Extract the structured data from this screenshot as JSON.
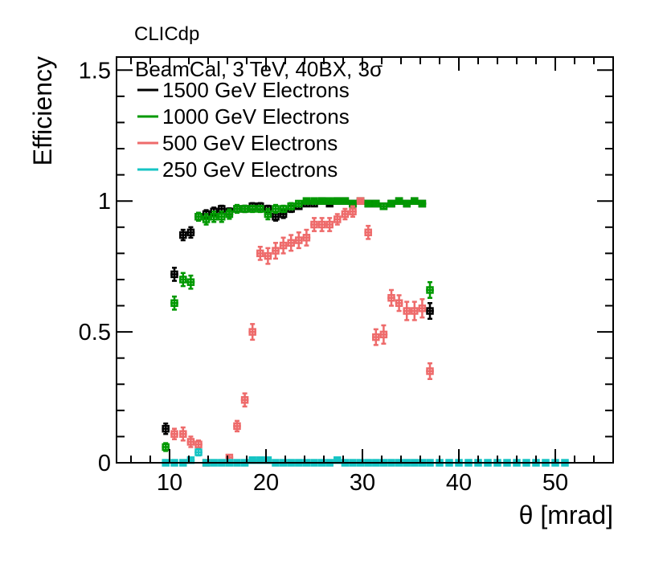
{
  "chart_data": {
    "type": "scatter",
    "experiment_label": "CLICdp",
    "legend_header": "BeamCal, 3 TeV, 40BX, 3σ",
    "xlabel": "θ [mrad]",
    "ylabel": "Efficiency",
    "xlim": [
      4.5,
      56
    ],
    "ylim": [
      0,
      1.55
    ],
    "x_ticks": [
      10,
      20,
      30,
      40,
      50
    ],
    "x_tick_labels": [
      "10",
      "20",
      "30",
      "40",
      "50"
    ],
    "y_ticks": [
      0,
      0.5,
      1,
      1.5
    ],
    "y_tick_labels": [
      "0",
      "0.5",
      "1",
      "1.5"
    ],
    "legend_position": "top-left",
    "series": [
      {
        "name": "1500 GeV Electrons",
        "color": "#000000",
        "x_halfwidth": 0.4,
        "points": [
          [
            9.6,
            0.13,
            0.02
          ],
          [
            10.5,
            0.72,
            0.025
          ],
          [
            11.4,
            0.87,
            0.02
          ],
          [
            12.2,
            0.88,
            0.02
          ],
          [
            13.0,
            0.94,
            0.015
          ],
          [
            13.8,
            0.95,
            0.015
          ],
          [
            14.6,
            0.96,
            0.015
          ],
          [
            15.4,
            0.97,
            0.012
          ],
          [
            16.2,
            0.96,
            0.012
          ],
          [
            17.0,
            0.97,
            0.012
          ],
          [
            17.8,
            0.97,
            0.012
          ],
          [
            18.6,
            0.98,
            0.012
          ],
          [
            19.4,
            0.98,
            0.012
          ],
          [
            20.2,
            0.97,
            0.012
          ],
          [
            21.0,
            0.94,
            0.015
          ],
          [
            21.8,
            0.95,
            0.015
          ],
          [
            22.6,
            0.97,
            0.012
          ],
          [
            23.4,
            0.98,
            0.01
          ],
          [
            24.2,
            0.99,
            0.01
          ],
          [
            25.0,
            0.99,
            0.01
          ],
          [
            25.8,
            1.0,
            0.008
          ],
          [
            26.6,
            0.99,
            0.008
          ],
          [
            27.4,
            1.0,
            0.008
          ],
          [
            28.2,
            1.0,
            0.008
          ],
          [
            29.0,
            0.99,
            0.008
          ],
          [
            29.8,
            1.0,
            0.008
          ],
          [
            30.6,
            0.99,
            0.008
          ],
          [
            31.4,
            0.99,
            0.008
          ],
          [
            32.2,
            0.98,
            0.01
          ],
          [
            33.0,
            0.99,
            0.008
          ],
          [
            33.8,
            1.0,
            0.008
          ],
          [
            34.6,
            0.99,
            0.008
          ],
          [
            35.4,
            1.0,
            0.008
          ],
          [
            36.2,
            0.99,
            0.008
          ],
          [
            37.0,
            0.58,
            0.03
          ]
        ]
      },
      {
        "name": "1000 GeV Electrons",
        "color": "#009900",
        "x_halfwidth": 0.4,
        "points": [
          [
            9.6,
            0.06,
            0.015
          ],
          [
            10.5,
            0.61,
            0.025
          ],
          [
            11.4,
            0.7,
            0.025
          ],
          [
            12.2,
            0.69,
            0.025
          ],
          [
            13.0,
            0.94,
            0.015
          ],
          [
            13.8,
            0.93,
            0.02
          ],
          [
            14.6,
            0.94,
            0.02
          ],
          [
            15.4,
            0.94,
            0.02
          ],
          [
            16.2,
            0.95,
            0.018
          ],
          [
            17.0,
            0.97,
            0.015
          ],
          [
            17.8,
            0.97,
            0.012
          ],
          [
            18.6,
            0.97,
            0.012
          ],
          [
            19.4,
            0.97,
            0.012
          ],
          [
            20.2,
            0.95,
            0.02
          ],
          [
            21.0,
            0.97,
            0.015
          ],
          [
            21.8,
            0.97,
            0.012
          ],
          [
            22.6,
            0.98,
            0.012
          ],
          [
            23.4,
            0.99,
            0.01
          ],
          [
            24.2,
            1.0,
            0.008
          ],
          [
            25.0,
            1.0,
            0.008
          ],
          [
            25.8,
            1.0,
            0.008
          ],
          [
            26.6,
            1.0,
            0.008
          ],
          [
            27.4,
            1.0,
            0.008
          ],
          [
            28.2,
            1.0,
            0.008
          ],
          [
            29.0,
            0.99,
            0.008
          ],
          [
            29.8,
            1.0,
            0.008
          ],
          [
            30.6,
            0.99,
            0.008
          ],
          [
            31.4,
            0.99,
            0.008
          ],
          [
            32.2,
            0.98,
            0.01
          ],
          [
            33.0,
            0.99,
            0.008
          ],
          [
            33.8,
            1.0,
            0.008
          ],
          [
            34.6,
            0.99,
            0.008
          ],
          [
            35.4,
            1.0,
            0.008
          ],
          [
            36.2,
            0.99,
            0.008
          ],
          [
            37.0,
            0.66,
            0.03
          ]
        ]
      },
      {
        "name": "500 GeV Electrons",
        "color": "#ee6b6b",
        "x_halfwidth": 0.4,
        "points": [
          [
            10.5,
            0.11,
            0.02
          ],
          [
            11.4,
            0.11,
            0.025
          ],
          [
            12.2,
            0.08,
            0.02
          ],
          [
            13.0,
            0.07,
            0.015
          ],
          [
            13.8,
            0.0,
            0.005
          ],
          [
            16.2,
            0.02,
            0.01
          ],
          [
            17.0,
            0.14,
            0.02
          ],
          [
            17.8,
            0.24,
            0.025
          ],
          [
            18.6,
            0.5,
            0.03
          ],
          [
            19.4,
            0.8,
            0.025
          ],
          [
            20.2,
            0.79,
            0.03
          ],
          [
            21.0,
            0.81,
            0.03
          ],
          [
            21.8,
            0.83,
            0.03
          ],
          [
            22.6,
            0.84,
            0.03
          ],
          [
            23.4,
            0.85,
            0.03
          ],
          [
            24.2,
            0.86,
            0.03
          ],
          [
            25.0,
            0.91,
            0.025
          ],
          [
            25.8,
            0.91,
            0.025
          ],
          [
            26.6,
            0.91,
            0.025
          ],
          [
            27.4,
            0.93,
            0.02
          ],
          [
            28.2,
            0.95,
            0.02
          ],
          [
            29.0,
            0.96,
            0.02
          ],
          [
            29.8,
            1.0,
            0.008
          ],
          [
            30.6,
            0.88,
            0.025
          ],
          [
            31.4,
            0.48,
            0.03
          ],
          [
            32.2,
            0.49,
            0.035
          ],
          [
            33.0,
            0.63,
            0.03
          ],
          [
            33.8,
            0.61,
            0.03
          ],
          [
            34.6,
            0.58,
            0.035
          ],
          [
            35.4,
            0.58,
            0.035
          ],
          [
            36.2,
            0.59,
            0.035
          ],
          [
            37.0,
            0.35,
            0.03
          ]
        ]
      },
      {
        "name": "250 GeV Electrons",
        "color": "#17c4c4",
        "x_halfwidth": 0.4,
        "points": [
          [
            9.6,
            0.0,
            0.004
          ],
          [
            10.5,
            0.0,
            0.004
          ],
          [
            11.4,
            0.0,
            0.004
          ],
          [
            12.2,
            0.01,
            0.008
          ],
          [
            13.0,
            0.04,
            0.012
          ],
          [
            13.8,
            0.0,
            0.004
          ],
          [
            14.6,
            0.0,
            0.004
          ],
          [
            15.4,
            0.0,
            0.004
          ],
          [
            16.2,
            0.0,
            0.004
          ],
          [
            17.0,
            0.0,
            0.004
          ],
          [
            17.8,
            0.0,
            0.004
          ],
          [
            18.6,
            0.01,
            0.006
          ],
          [
            19.4,
            0.01,
            0.006
          ],
          [
            20.2,
            0.01,
            0.006
          ],
          [
            21.0,
            0.0,
            0.004
          ],
          [
            21.8,
            0.0,
            0.004
          ],
          [
            22.6,
            0.0,
            0.004
          ],
          [
            23.4,
            0.0,
            0.004
          ],
          [
            24.2,
            0.0,
            0.004
          ],
          [
            25.0,
            0.0,
            0.004
          ],
          [
            25.8,
            0.0,
            0.004
          ],
          [
            26.6,
            0.0,
            0.004
          ],
          [
            27.4,
            0.01,
            0.006
          ],
          [
            28.2,
            0.0,
            0.004
          ],
          [
            29.0,
            0.0,
            0.004
          ],
          [
            29.8,
            0.0,
            0.004
          ],
          [
            30.6,
            0.0,
            0.004
          ],
          [
            31.4,
            0.0,
            0.004
          ],
          [
            32.2,
            0.0,
            0.004
          ],
          [
            33.0,
            0.0,
            0.004
          ],
          [
            33.8,
            0.0,
            0.004
          ],
          [
            34.6,
            0.0,
            0.004
          ],
          [
            35.4,
            0.0,
            0.004
          ],
          [
            36.2,
            0.0,
            0.004
          ],
          [
            37.0,
            0.0,
            0.004
          ],
          [
            38.0,
            0.0,
            0.004
          ],
          [
            39.0,
            0.0,
            0.004
          ],
          [
            40.0,
            0.0,
            0.004
          ],
          [
            41.0,
            0.0,
            0.004
          ],
          [
            42.0,
            0.0,
            0.004
          ],
          [
            43.0,
            0.0,
            0.004
          ],
          [
            44.0,
            0.0,
            0.004
          ],
          [
            45.0,
            0.0,
            0.004
          ],
          [
            46.0,
            0.0,
            0.004
          ],
          [
            47.0,
            0.0,
            0.004
          ],
          [
            48.0,
            0.0,
            0.004
          ],
          [
            49.0,
            0.0,
            0.004
          ],
          [
            50.0,
            0.0,
            0.004
          ],
          [
            51.0,
            0.0,
            0.004
          ]
        ]
      }
    ]
  }
}
